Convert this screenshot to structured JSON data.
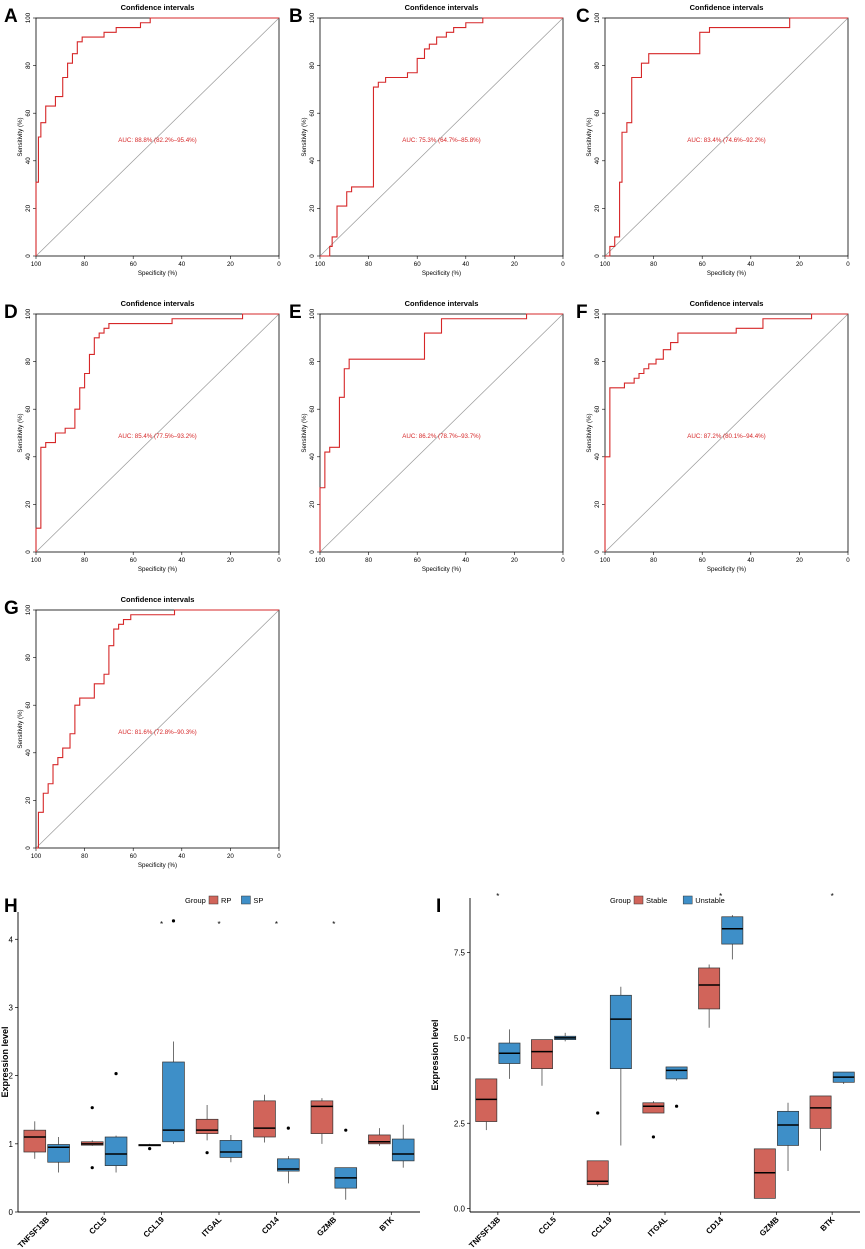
{
  "chart_data": [
    {
      "panel": "A",
      "type": "line",
      "title": "Confidence intervals",
      "xlabel": "Specificity (%)",
      "ylabel": "Sensitivity (%)",
      "xlim": [
        100,
        0
      ],
      "ylim": [
        0,
        100
      ],
      "xticks": [
        "100",
        "80",
        "60",
        "40",
        "20",
        "0"
      ],
      "yticks": [
        "0",
        "20",
        "40",
        "60",
        "80",
        "100"
      ],
      "auc_label": "AUC: 88.8% (82.2%–95.4%)",
      "x": [
        100,
        100,
        99,
        99,
        98,
        98,
        96,
        96,
        92,
        92,
        89,
        89,
        87,
        87,
        85,
        85,
        83,
        83,
        81,
        81,
        72,
        72,
        67,
        67,
        57,
        57,
        53,
        53,
        32,
        32,
        18,
        18,
        0
      ],
      "y": [
        0,
        31,
        31,
        50,
        50,
        56,
        56,
        63,
        63,
        67,
        67,
        75,
        75,
        81,
        81,
        85,
        85,
        90,
        90,
        92,
        92,
        94,
        94,
        96,
        96,
        98,
        98,
        100,
        100,
        100,
        100,
        100,
        100
      ]
    },
    {
      "panel": "B",
      "type": "line",
      "title": "Confidence intervals",
      "xlabel": "Specificity (%)",
      "ylabel": "Sensitivity (%)",
      "xlim": [
        100,
        0
      ],
      "ylim": [
        0,
        100
      ],
      "xticks": [
        "100",
        "80",
        "60",
        "40",
        "20",
        "0"
      ],
      "yticks": [
        "0",
        "20",
        "40",
        "60",
        "80",
        "100"
      ],
      "auc_label": "AUC: 75.3% (64.7%–85.8%)",
      "x": [
        100,
        96,
        96,
        95,
        95,
        93,
        93,
        89,
        89,
        87,
        87,
        83,
        83,
        78,
        78,
        76,
        76,
        73,
        73,
        71,
        71,
        64,
        64,
        60,
        60,
        57,
        57,
        55,
        55,
        52,
        52,
        48,
        48,
        45,
        45,
        40,
        40,
        33,
        33,
        0
      ],
      "y": [
        0,
        0,
        4,
        4,
        8,
        8,
        21,
        21,
        27,
        27,
        29,
        29,
        29,
        29,
        71,
        71,
        73,
        73,
        75,
        75,
        75,
        75,
        77,
        77,
        83,
        83,
        87,
        87,
        89,
        89,
        92,
        92,
        94,
        94,
        96,
        96,
        98,
        98,
        100,
        100
      ]
    },
    {
      "panel": "C",
      "type": "line",
      "title": "Confidence intervals",
      "xlabel": "Specificity (%)",
      "ylabel": "Sensitivity (%)",
      "xlim": [
        100,
        0
      ],
      "ylim": [
        0,
        100
      ],
      "xticks": [
        "100",
        "80",
        "60",
        "40",
        "20",
        "0"
      ],
      "yticks": [
        "0",
        "20",
        "40",
        "60",
        "80",
        "100"
      ],
      "auc_label": "AUC: 83.4% (74.6%–92.2%)",
      "x": [
        100,
        98,
        98,
        96,
        96,
        94,
        94,
        93,
        93,
        91,
        91,
        89,
        89,
        85,
        85,
        82,
        82,
        73,
        73,
        61,
        61,
        57,
        57,
        24,
        24,
        0
      ],
      "y": [
        0,
        0,
        4,
        4,
        8,
        8,
        31,
        31,
        52,
        52,
        56,
        56,
        75,
        75,
        81,
        81,
        85,
        85,
        85,
        85,
        94,
        94,
        96,
        96,
        100,
        100
      ]
    },
    {
      "panel": "D",
      "type": "line",
      "title": "Confidence intervals",
      "xlabel": "Specificity (%)",
      "ylabel": "Sensitivity (%)",
      "xlim": [
        100,
        0
      ],
      "ylim": [
        0,
        100
      ],
      "xticks": [
        "100",
        "80",
        "60",
        "40",
        "20",
        "0"
      ],
      "yticks": [
        "0",
        "20",
        "40",
        "60",
        "80",
        "100"
      ],
      "auc_label": "AUC: 85.4% (77.5%–93.2%)",
      "x": [
        100,
        100,
        98,
        98,
        96,
        96,
        92,
        92,
        88,
        88,
        84,
        84,
        82,
        82,
        80,
        80,
        78,
        78,
        76,
        76,
        74,
        74,
        72,
        72,
        70,
        70,
        68,
        68,
        44,
        44,
        15,
        15,
        0
      ],
      "y": [
        0,
        10,
        10,
        44,
        44,
        46,
        46,
        50,
        50,
        52,
        52,
        60,
        60,
        69,
        69,
        75,
        75,
        83,
        83,
        90,
        90,
        92,
        92,
        94,
        94,
        96,
        96,
        96,
        96,
        98,
        98,
        100,
        100
      ]
    },
    {
      "panel": "E",
      "type": "line",
      "title": "Confidence intervals",
      "xlabel": "Specificity (%)",
      "ylabel": "Sensitivity (%)",
      "xlim": [
        100,
        0
      ],
      "ylim": [
        0,
        100
      ],
      "xticks": [
        "100",
        "80",
        "60",
        "40",
        "20",
        "0"
      ],
      "yticks": [
        "0",
        "20",
        "40",
        "60",
        "80",
        "100"
      ],
      "auc_label": "AUC: 86.2% (78.7%–93.7%)",
      "x": [
        100,
        100,
        98,
        98,
        96,
        96,
        92,
        92,
        90,
        90,
        88,
        88,
        86,
        86,
        57,
        57,
        50,
        50,
        15,
        15,
        0
      ],
      "y": [
        0,
        27,
        27,
        42,
        42,
        44,
        44,
        65,
        65,
        77,
        77,
        81,
        81,
        81,
        81,
        92,
        92,
        98,
        98,
        100,
        100
      ]
    },
    {
      "panel": "F",
      "type": "line",
      "title": "Confidence intervals",
      "xlabel": "Specificity (%)",
      "ylabel": "Sensitivity (%)",
      "xlim": [
        100,
        0
      ],
      "ylim": [
        0,
        100
      ],
      "xticks": [
        "100",
        "80",
        "60",
        "40",
        "20",
        "0"
      ],
      "yticks": [
        "0",
        "20",
        "40",
        "60",
        "80",
        "100"
      ],
      "auc_label": "AUC: 87.2% (80.1%–94.4%)",
      "x": [
        100,
        100,
        98,
        98,
        92,
        92,
        88,
        88,
        86,
        86,
        84,
        84,
        82,
        82,
        79,
        79,
        76,
        76,
        73,
        73,
        70,
        70,
        68,
        68,
        46,
        46,
        35,
        35,
        15,
        15,
        0
      ],
      "y": [
        0,
        40,
        40,
        69,
        69,
        71,
        71,
        73,
        73,
        75,
        75,
        77,
        77,
        79,
        79,
        81,
        81,
        85,
        85,
        88,
        88,
        92,
        92,
        92,
        92,
        94,
        94,
        98,
        98,
        100,
        100
      ]
    },
    {
      "panel": "G",
      "type": "line",
      "title": "Confidence intervals",
      "xlabel": "Specificity (%)",
      "ylabel": "Sensitivity (%)",
      "xlim": [
        100,
        0
      ],
      "ylim": [
        0,
        100
      ],
      "xticks": [
        "100",
        "80",
        "60",
        "40",
        "20",
        "0"
      ],
      "yticks": [
        "0",
        "20",
        "40",
        "60",
        "80",
        "100"
      ],
      "auc_label": "AUC: 81.6% (72.8%–90.3%)",
      "x": [
        100,
        99,
        99,
        97,
        97,
        95,
        95,
        93,
        93,
        91,
        91,
        89,
        89,
        86,
        86,
        84,
        84,
        82,
        82,
        76,
        76,
        72,
        72,
        70,
        70,
        68,
        68,
        66,
        66,
        64,
        64,
        61,
        61,
        57,
        57,
        53,
        53,
        43,
        43,
        0
      ],
      "y": [
        0,
        0,
        15,
        15,
        23,
        23,
        27,
        27,
        35,
        35,
        38,
        38,
        42,
        42,
        48,
        48,
        60,
        60,
        63,
        63,
        69,
        69,
        73,
        73,
        85,
        85,
        92,
        92,
        94,
        94,
        96,
        96,
        98,
        98,
        98,
        98,
        98,
        98,
        100,
        100
      ]
    },
    {
      "panel": "H",
      "type": "box",
      "ylabel": "Expression level",
      "ylim": [
        0,
        4.4
      ],
      "yticks": [
        "0",
        "1",
        "2",
        "3",
        "4"
      ],
      "legend_title": "Group",
      "groups": [
        "RP",
        "SP"
      ],
      "colors": [
        "#d1645a",
        "#3e8fc8"
      ],
      "categories": [
        "TNFSF13B",
        "CCL5",
        "CCL19",
        "ITGAL",
        "CD14",
        "GZMB",
        "BTK"
      ],
      "significance": [
        "",
        "",
        "*",
        "*",
        "*",
        "*",
        ""
      ],
      "series": [
        {
          "name": "RP",
          "boxes": [
            {
              "min": 0.78,
              "q1": 0.88,
              "median": 1.1,
              "q3": 1.2,
              "max": 1.33,
              "outliers": []
            },
            {
              "min": 0.97,
              "q1": 0.98,
              "median": 1.0,
              "q3": 1.03,
              "max": 1.05,
              "outliers": [
                1.53,
                0.65
              ]
            },
            {
              "min": 0.97,
              "q1": 0.97,
              "median": 0.98,
              "q3": 0.99,
              "max": 1.0,
              "outliers": [
                0.93
              ]
            },
            {
              "min": 1.05,
              "q1": 1.15,
              "median": 1.2,
              "q3": 1.36,
              "max": 1.57,
              "outliers": [
                0.87
              ]
            },
            {
              "min": 1.02,
              "q1": 1.1,
              "median": 1.23,
              "q3": 1.63,
              "max": 1.72,
              "outliers": []
            },
            {
              "min": 1.0,
              "q1": 1.15,
              "median": 1.55,
              "q3": 1.63,
              "max": 1.67,
              "outliers": []
            },
            {
              "min": 0.97,
              "q1": 1.0,
              "median": 1.03,
              "q3": 1.13,
              "max": 1.23,
              "outliers": []
            }
          ]
        },
        {
          "name": "SP",
          "boxes": [
            {
              "min": 0.58,
              "q1": 0.73,
              "median": 0.95,
              "q3": 0.99,
              "max": 1.1,
              "outliers": []
            },
            {
              "min": 0.58,
              "q1": 0.68,
              "median": 0.85,
              "q3": 1.1,
              "max": 1.12,
              "outliers": [
                2.03
              ]
            },
            {
              "min": 1.0,
              "q1": 1.03,
              "median": 1.2,
              "q3": 2.2,
              "max": 2.5,
              "outliers": [
                4.27
              ]
            },
            {
              "min": 0.73,
              "q1": 0.8,
              "median": 0.88,
              "q3": 1.05,
              "max": 1.13,
              "outliers": []
            },
            {
              "min": 0.42,
              "q1": 0.6,
              "median": 0.63,
              "q3": 0.78,
              "max": 0.82,
              "outliers": [
                1.23
              ]
            },
            {
              "min": 0.18,
              "q1": 0.35,
              "median": 0.5,
              "q3": 0.65,
              "max": 0.65,
              "outliers": [
                1.2
              ]
            },
            {
              "min": 0.65,
              "q1": 0.75,
              "median": 0.85,
              "q3": 1.07,
              "max": 1.28,
              "outliers": []
            }
          ]
        }
      ]
    },
    {
      "panel": "I",
      "type": "box",
      "ylabel": "Expression level",
      "ylim": [
        -0.1,
        9.1
      ],
      "yticks": [
        "0.0",
        "2.5",
        "5.0",
        "7.5"
      ],
      "legend_title": "Group",
      "groups": [
        "Stable",
        "Unstable"
      ],
      "colors": [
        "#d1645a",
        "#3e8fc8"
      ],
      "categories": [
        "TNFSF13B",
        "CCL5",
        "CCL19",
        "ITGAL",
        "CD14",
        "GZMB",
        "BTK"
      ],
      "significance": [
        "*",
        "",
        "",
        "",
        "*",
        "",
        "*"
      ],
      "series": [
        {
          "name": "Stable",
          "boxes": [
            {
              "min": 2.3,
              "q1": 2.55,
              "median": 3.2,
              "q3": 3.8,
              "max": 3.8,
              "outliers": []
            },
            {
              "min": 3.6,
              "q1": 4.1,
              "median": 4.6,
              "q3": 4.95,
              "max": 4.95,
              "outliers": []
            },
            {
              "min": 0.65,
              "q1": 0.7,
              "median": 0.8,
              "q3": 1.4,
              "max": 1.4,
              "outliers": [
                2.8
              ]
            },
            {
              "min": 2.8,
              "q1": 2.8,
              "median": 3.0,
              "q3": 3.1,
              "max": 3.15,
              "outliers": [
                2.1
              ]
            },
            {
              "min": 5.3,
              "q1": 5.85,
              "median": 6.55,
              "q3": 7.05,
              "max": 7.15,
              "outliers": []
            },
            {
              "min": 0.3,
              "q1": 0.3,
              "median": 1.05,
              "q3": 1.75,
              "max": 1.75,
              "outliers": []
            },
            {
              "min": 1.7,
              "q1": 2.35,
              "median": 2.95,
              "q3": 3.3,
              "max": 3.3,
              "outliers": []
            }
          ]
        },
        {
          "name": "Unstable",
          "boxes": [
            {
              "min": 3.8,
              "q1": 4.25,
              "median": 4.55,
              "q3": 4.85,
              "max": 5.25,
              "outliers": []
            },
            {
              "min": 4.9,
              "q1": 4.95,
              "median": 5.0,
              "q3": 5.05,
              "max": 5.15,
              "outliers": []
            },
            {
              "min": 1.85,
              "q1": 4.1,
              "median": 5.55,
              "q3": 6.25,
              "max": 6.5,
              "outliers": []
            },
            {
              "min": 3.75,
              "q1": 3.8,
              "median": 4.05,
              "q3": 4.15,
              "max": 4.15,
              "outliers": [
                3.0
              ]
            },
            {
              "min": 7.3,
              "q1": 7.75,
              "median": 8.2,
              "q3": 8.55,
              "max": 8.6,
              "outliers": []
            },
            {
              "min": 1.1,
              "q1": 1.85,
              "median": 2.45,
              "q3": 2.85,
              "max": 3.1,
              "outliers": []
            },
            {
              "min": 3.65,
              "q1": 3.7,
              "median": 3.85,
              "q3": 4.0,
              "max": 4.0,
              "outliers": []
            }
          ]
        }
      ]
    }
  ]
}
